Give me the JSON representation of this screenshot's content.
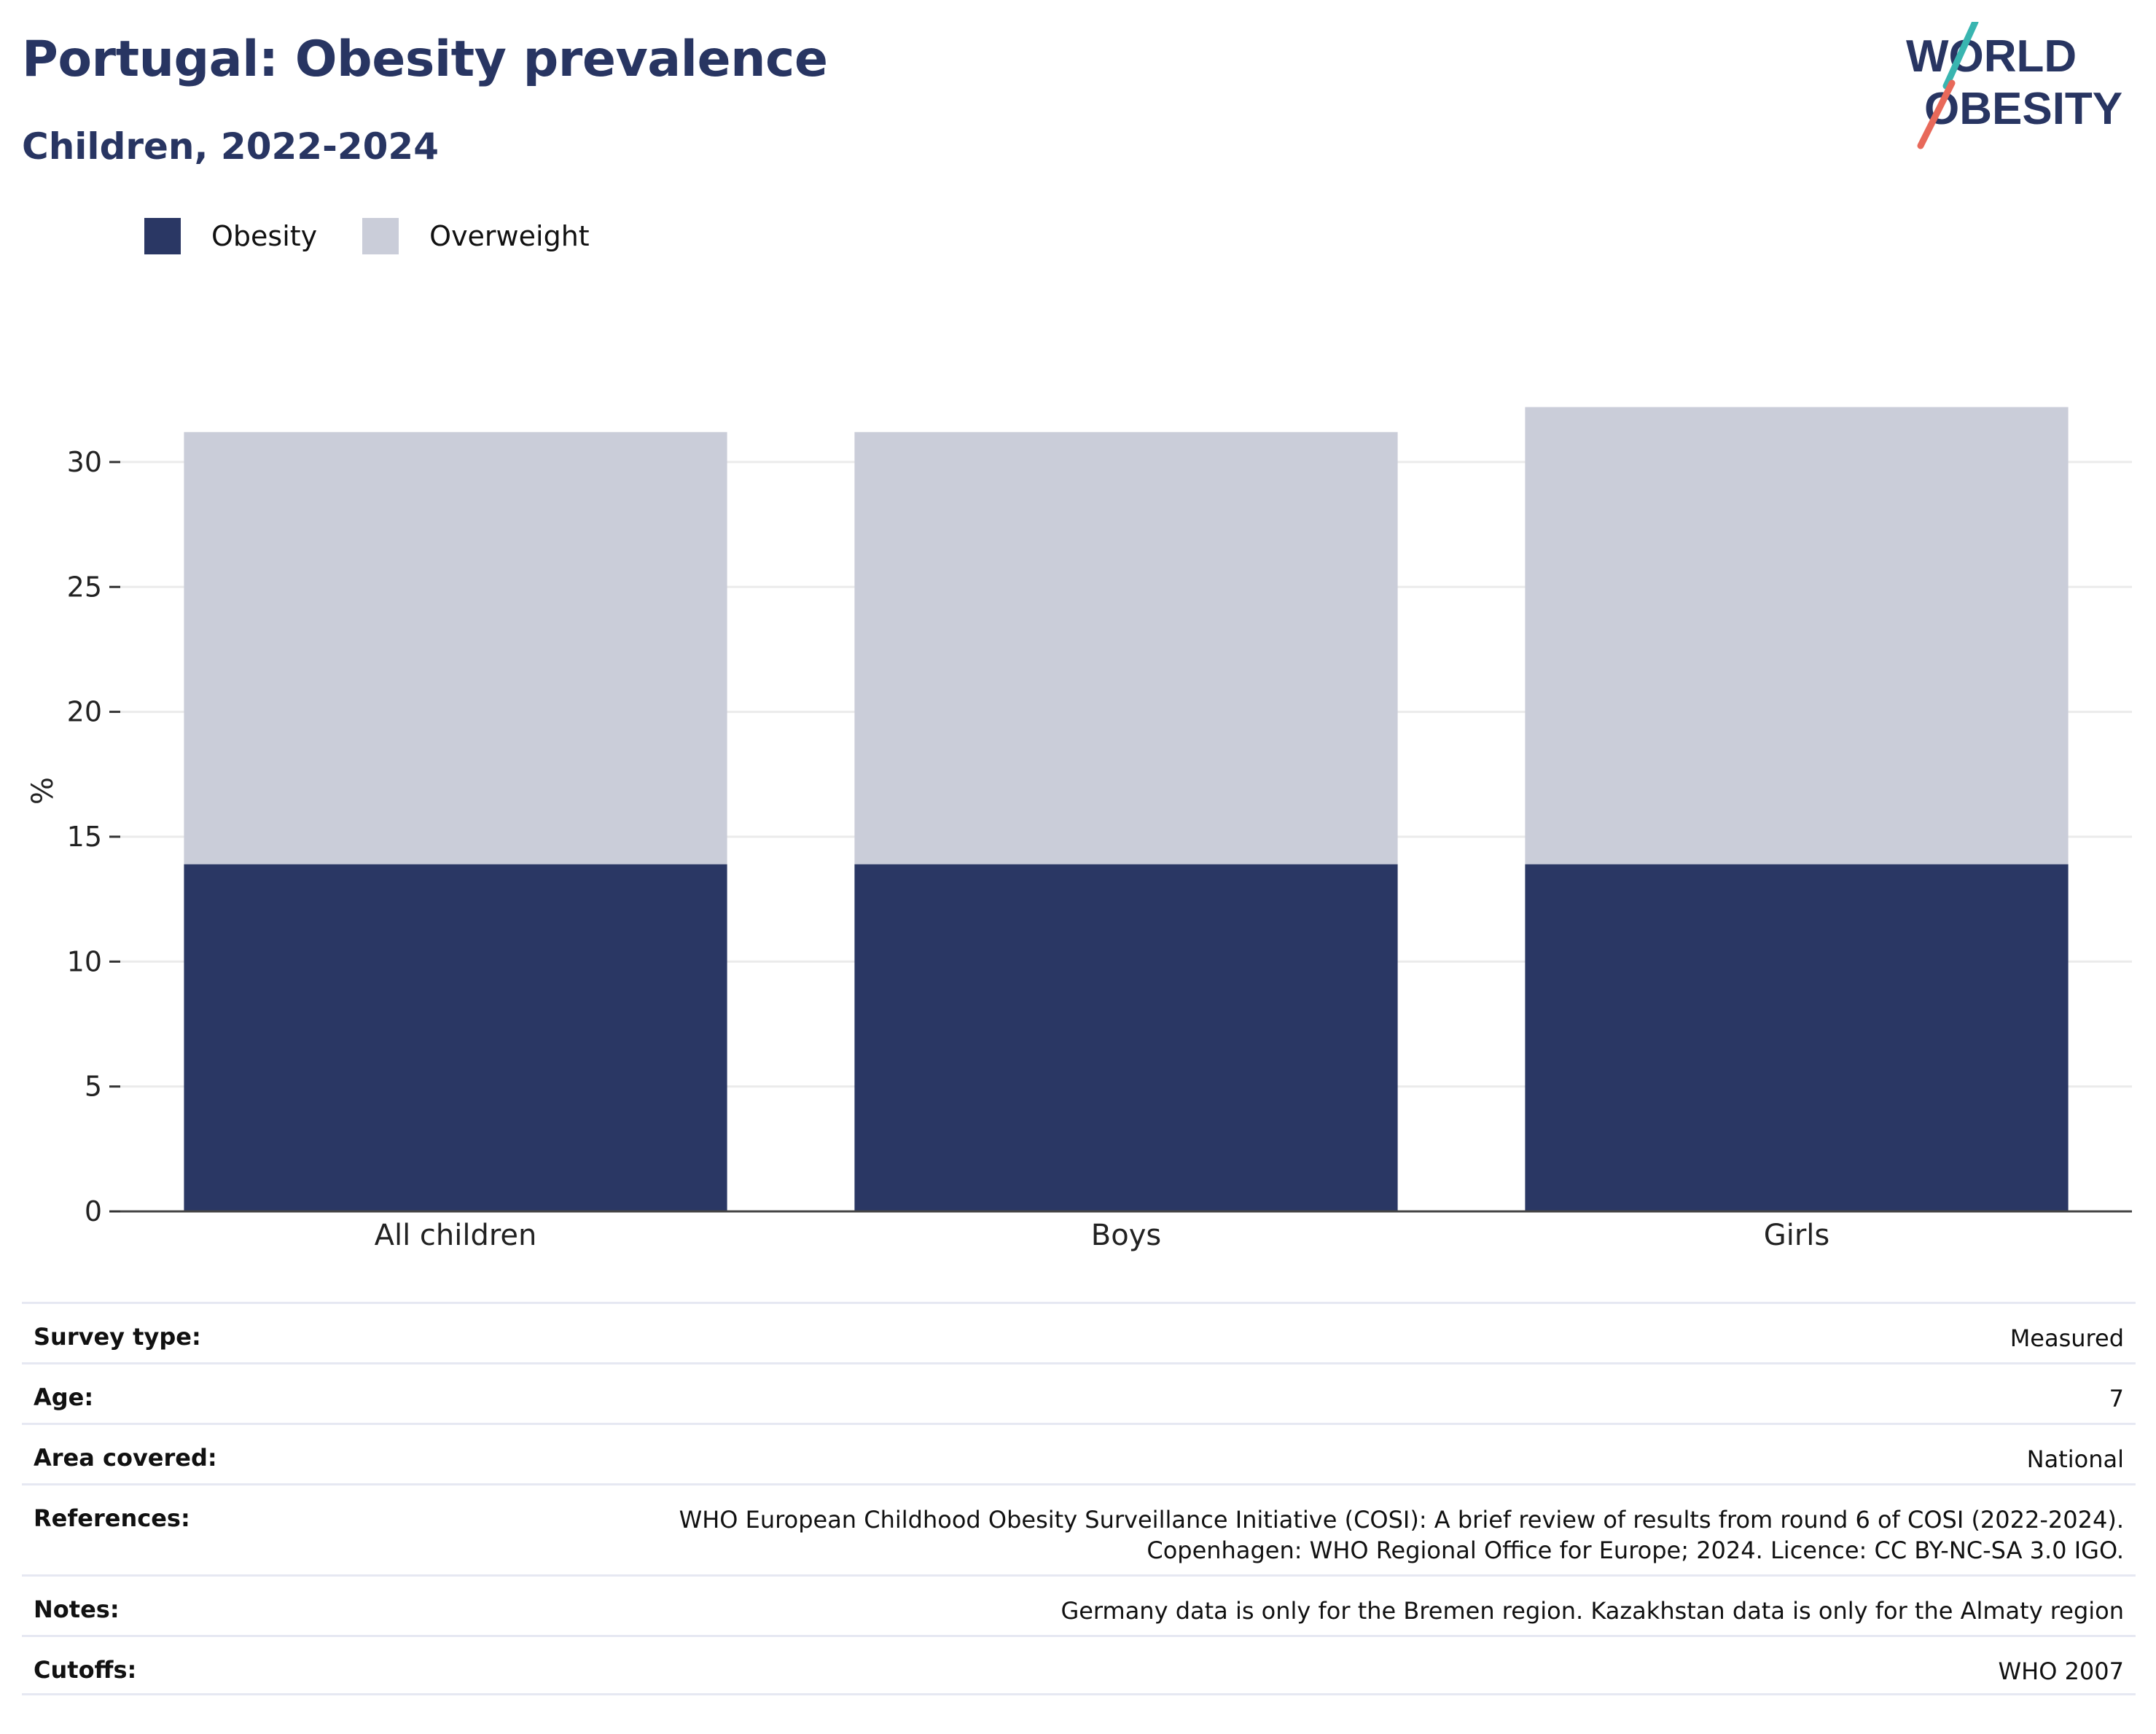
{
  "header": {
    "title": "Portugal: Obesity prevalence",
    "subtitle": "Children, 2022-2024",
    "logo_text_line1": "WORLD",
    "logo_text_line2": "OBESITY"
  },
  "legend": [
    {
      "label": "Obesity",
      "color": "#2a3764"
    },
    {
      "label": "Overweight",
      "color": "#cacdd9"
    }
  ],
  "chart_data": {
    "type": "bar",
    "stacked": true,
    "categories": [
      "All children",
      "Boys",
      "Girls"
    ],
    "series": [
      {
        "name": "Obesity",
        "color": "#2a3764",
        "values": [
          13.9,
          13.9,
          13.9
        ]
      },
      {
        "name": "Overweight",
        "color": "#cacdd9",
        "values": [
          17.3,
          17.3,
          18.3
        ]
      }
    ],
    "ylabel": "%",
    "yticks": [
      0,
      5,
      10,
      15,
      20,
      25,
      30
    ],
    "ylim": [
      0,
      31
    ],
    "grid": true,
    "legend_position": "top-left"
  },
  "metadata": [
    {
      "label": "Survey type:",
      "value": "Measured"
    },
    {
      "label": "Age:",
      "value": "7"
    },
    {
      "label": "Area covered:",
      "value": "National"
    },
    {
      "label": "References:",
      "value_lines": [
        "WHO European Childhood Obesity Surveillance Initiative (COSI): A brief review of results from round 6 of COSI (2022-2024).",
        "Copenhagen: WHO Regional Office for Europe; 2024. Licence: CC BY-NC-SA 3.0 IGO."
      ]
    },
    {
      "label": "Notes:",
      "value": "Germany data is only for the Bremen region. Kazakhstan data is only for the Almaty region"
    },
    {
      "label": "Cutoffs:",
      "value": "WHO 2007"
    }
  ]
}
